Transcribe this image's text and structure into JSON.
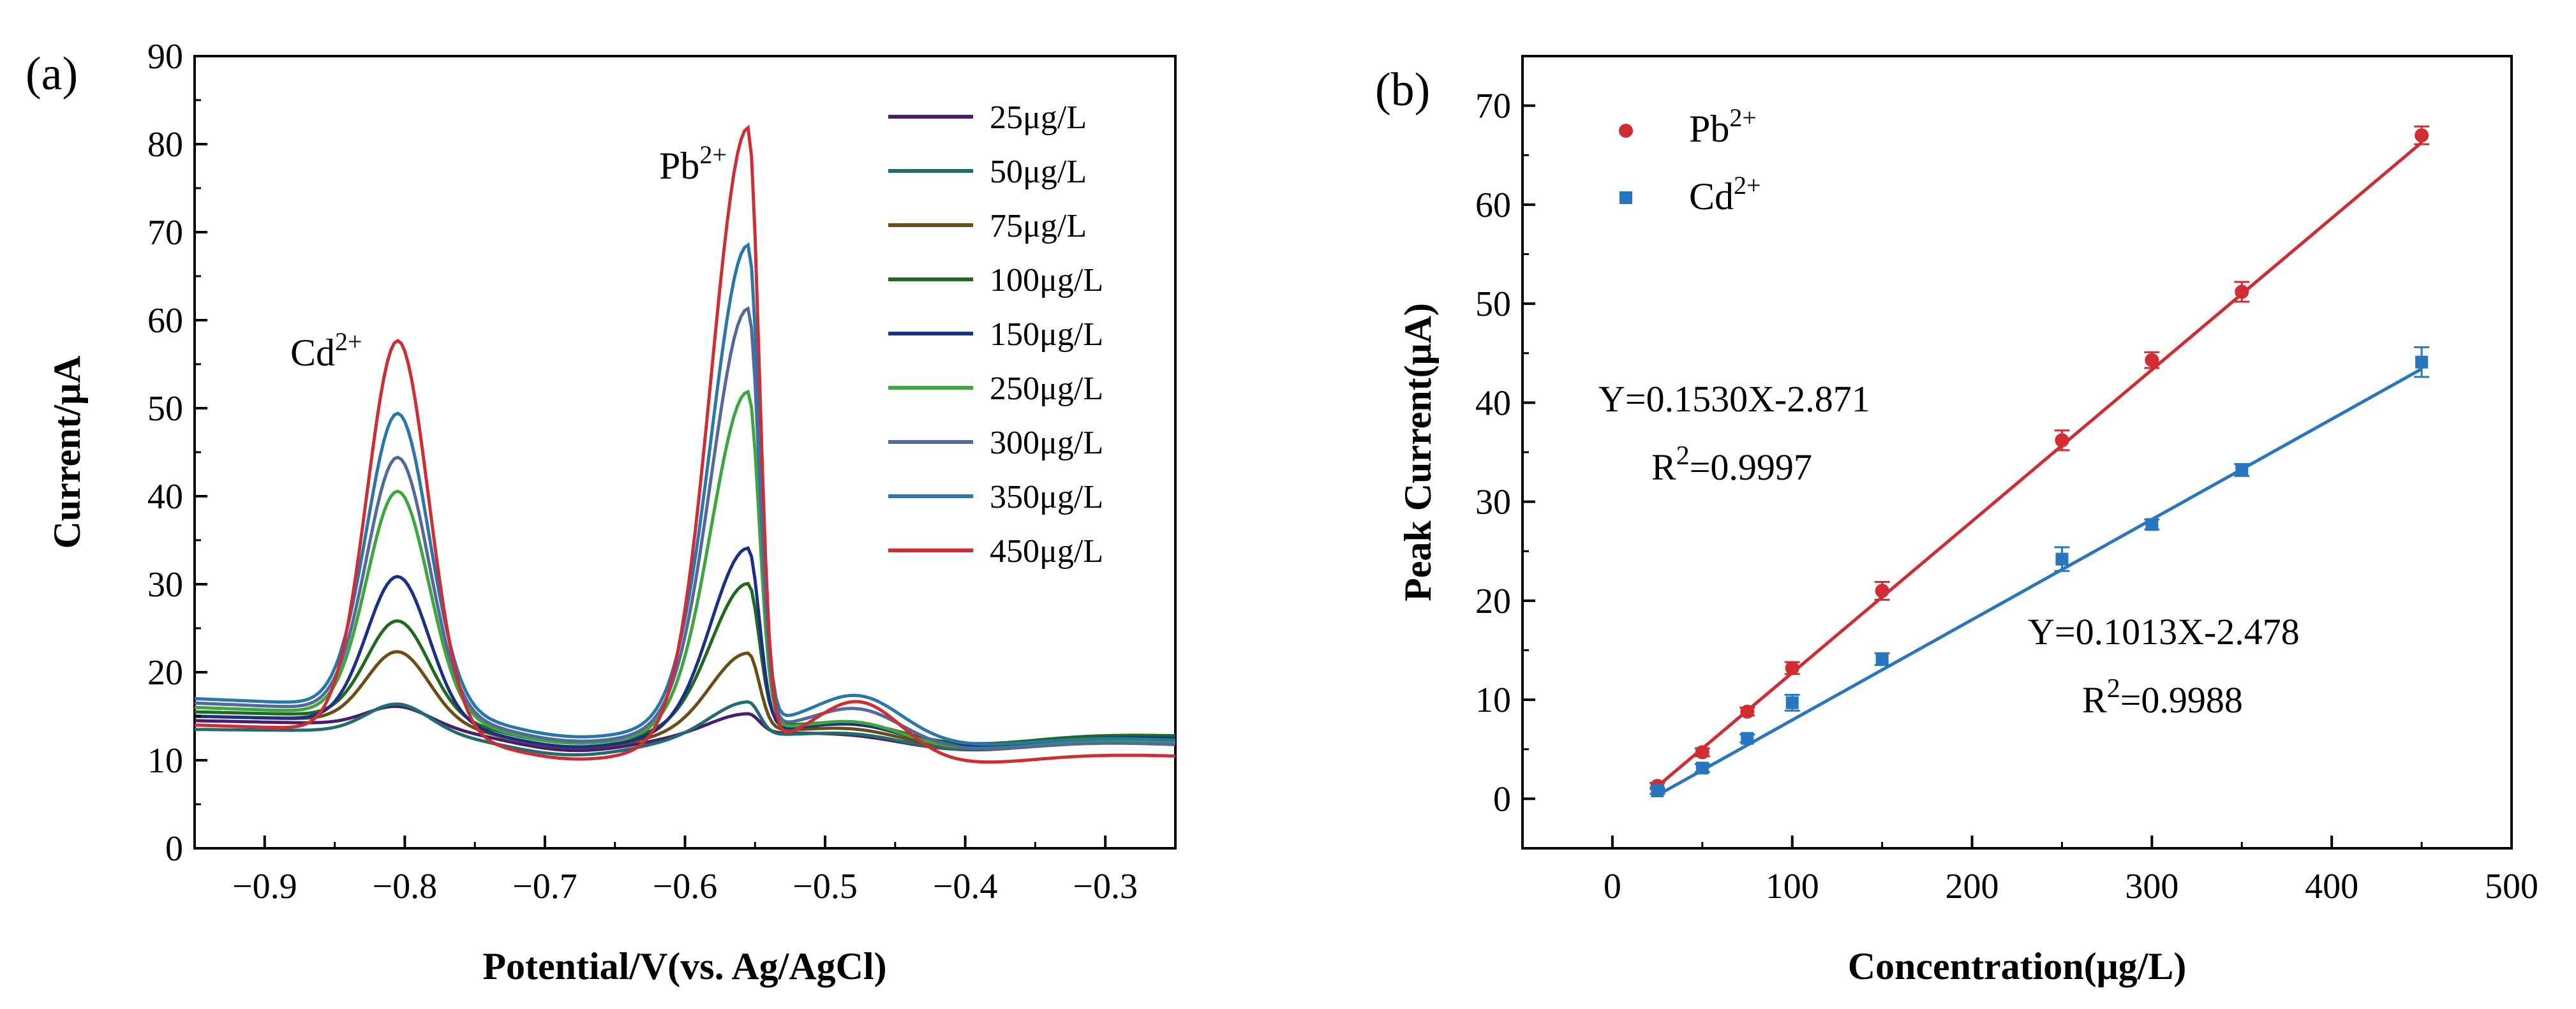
{
  "chart_data": [
    {
      "panel": "(a)",
      "type": "line",
      "title": "",
      "xlabel": "Potential/V(vs. Ag/AgCl)",
      "ylabel": "Current/μA",
      "xlim": [
        -0.95,
        -0.25
      ],
      "ylim": [
        0,
        90
      ],
      "xticks": [
        -0.9,
        -0.8,
        -0.7,
        -0.6,
        -0.5,
        -0.4,
        -0.3
      ],
      "xtick_labels": [
        "−0.9",
        "−0.8",
        "−0.7",
        "−0.6",
        "−0.5",
        "−0.4",
        "−0.3"
      ],
      "yticks": [
        0,
        10,
        20,
        30,
        40,
        50,
        60,
        70,
        80,
        90
      ],
      "annotations": [
        {
          "text": "Cd",
          "sup": "2+",
          "x": -0.825,
          "y": 61
        },
        {
          "text": "Pb",
          "sup": "2+",
          "x": -0.6,
          "y": 77
        }
      ],
      "series": [
        {
          "name": "25μg/L",
          "color": "#4a1e6e",
          "base0": 14.5,
          "baseEnd": 12.2,
          "cd": 2.2,
          "pb": 2.2,
          "bump": 0.3
        },
        {
          "name": "50μg/L",
          "color": "#1d6e6e",
          "base0": 13.5,
          "baseEnd": 12.5,
          "cd": 3.2,
          "pb": 3.8,
          "bump": 0.6
        },
        {
          "name": "75μg/L",
          "color": "#6b4c12",
          "base0": 15.0,
          "baseEnd": 12.3,
          "cd": 8.0,
          "pb": 8.8,
          "bump": 0.8
        },
        {
          "name": "100μg/L",
          "color": "#1e6b1e",
          "base0": 15.5,
          "baseEnd": 12.8,
          "cd": 11.0,
          "pb": 16.2,
          "bump": 1.0
        },
        {
          "name": "150μg/L",
          "color": "#1a2f8c",
          "base0": 15.0,
          "baseEnd": 12.5,
          "cd": 16.5,
          "pb": 20.6,
          "bump": 1.2
        },
        {
          "name": "250μg/L",
          "color": "#3aa93a",
          "base0": 16.0,
          "baseEnd": 12.0,
          "cd": 25.5,
          "pb": 38.2,
          "bump": 1.5
        },
        {
          "name": "300μg/L",
          "color": "#55689e",
          "base0": 16.5,
          "baseEnd": 11.8,
          "cd": 29.0,
          "pb": 47.5,
          "bump": 3.0
        },
        {
          "name": "350μg/L",
          "color": "#2677ad",
          "base0": 17.0,
          "baseEnd": 12.3,
          "cd": 33.5,
          "pb": 54.2,
          "bump": 4.0
        },
        {
          "name": "450μg/L",
          "color": "#d42a32",
          "base0": 14.0,
          "baseEnd": 10.5,
          "cd": 44.5,
          "pb": 69.8,
          "bump": 5.5
        }
      ]
    },
    {
      "panel": "(b)",
      "type": "scatter",
      "title": "",
      "xlabel": "Concentration(μg/L)",
      "ylabel": "Peak Current(μA)",
      "xlim": [
        -50,
        500
      ],
      "ylim": [
        -5,
        75
      ],
      "xticks": [
        0,
        100,
        200,
        300,
        400,
        500
      ],
      "yticks": [
        0,
        10,
        20,
        30,
        40,
        50,
        60,
        70
      ],
      "x": [
        25,
        50,
        75,
        100,
        150,
        250,
        300,
        350,
        450
      ],
      "series": [
        {
          "name": "Pb",
          "sup": "2+",
          "marker": "circle",
          "color": "#d42a32",
          "values": [
            1.3,
            4.7,
            8.8,
            13.2,
            21.0,
            36.2,
            44.3,
            51.2,
            67.0
          ],
          "errors": [
            0.3,
            0.4,
            0.4,
            0.6,
            0.9,
            1.0,
            0.8,
            1.0,
            0.9
          ],
          "fit": {
            "slope": 0.153,
            "intercept": -2.871
          },
          "equation": "Y=0.1530X-2.871",
          "r2_label": "R",
          "r2_sup": "2",
          "r2_value": "=0.9997"
        },
        {
          "name": "Cd",
          "sup": "2+",
          "marker": "square",
          "color": "#2677c0",
          "values": [
            0.8,
            3.1,
            6.1,
            9.7,
            14.1,
            24.2,
            27.7,
            33.2,
            44.1
          ],
          "errors": [
            0.3,
            0.4,
            0.4,
            0.8,
            0.6,
            1.2,
            0.5,
            0.6,
            1.5
          ],
          "fit": {
            "slope": 0.1013,
            "intercept": -2.478
          },
          "equation": "Y=0.1013X-2.478",
          "r2_label": "R",
          "r2_sup": "2",
          "r2_value": "=0.9988"
        }
      ]
    }
  ]
}
